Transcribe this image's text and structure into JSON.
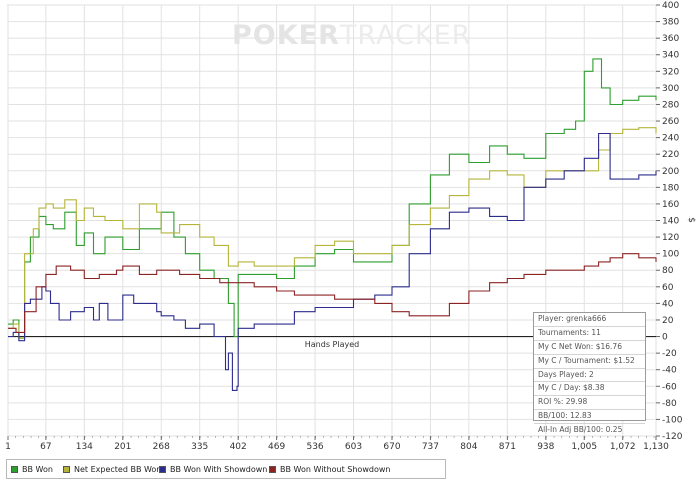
{
  "watermark": {
    "bold": "POKER",
    "light": "TRACKER"
  },
  "chart_data": {
    "type": "line",
    "title": "",
    "xlabel": "Hands Played",
    "ylabel": "$",
    "xlim": [
      1,
      1130
    ],
    "ylim": [
      -120,
      400
    ],
    "x_ticks": [
      "1",
      "67",
      "134",
      "201",
      "268",
      "335",
      "402",
      "469",
      "536",
      "603",
      "670",
      "737",
      "804",
      "871",
      "938",
      "1,005",
      "1,072",
      "1,130"
    ],
    "y_ticks": [
      400,
      380,
      360,
      340,
      320,
      300,
      280,
      260,
      240,
      220,
      200,
      180,
      160,
      140,
      120,
      100,
      80,
      60,
      40,
      20,
      0,
      -20,
      -40,
      -60,
      -80,
      -100,
      -120
    ],
    "grid": true,
    "legend_position": "bottom-left",
    "series": [
      {
        "name": "BB Won",
        "color": "#2e9e2e",
        "x": [
          1,
          10,
          20,
          30,
          40,
          55,
          67,
          80,
          100,
          120,
          134,
          150,
          170,
          201,
          230,
          260,
          268,
          290,
          310,
          335,
          360,
          385,
          395,
          402,
          430,
          469,
          500,
          536,
          570,
          603,
          640,
          670,
          700,
          737,
          770,
          804,
          840,
          871,
          900,
          938,
          970,
          990,
          1005,
          1020,
          1035,
          1050,
          1072,
          1100,
          1130
        ],
        "y": [
          15,
          20,
          -2,
          90,
          120,
          145,
          135,
          130,
          150,
          110,
          125,
          100,
          120,
          105,
          130,
          130,
          150,
          120,
          100,
          80,
          70,
          40,
          0,
          75,
          75,
          70,
          85,
          100,
          105,
          90,
          90,
          110,
          160,
          195,
          220,
          210,
          230,
          220,
          215,
          245,
          250,
          260,
          320,
          335,
          300,
          280,
          285,
          290,
          285
        ]
      },
      {
        "name": "Net Expected BB Won",
        "color": "#b5b53a",
        "x": [
          1,
          10,
          20,
          30,
          45,
          55,
          67,
          80,
          100,
          120,
          134,
          150,
          170,
          201,
          230,
          260,
          268,
          300,
          335,
          360,
          385,
          402,
          430,
          469,
          500,
          536,
          570,
          603,
          640,
          670,
          700,
          737,
          770,
          804,
          840,
          871,
          900,
          938,
          970,
          1005,
          1030,
          1050,
          1072,
          1100,
          1130
        ],
        "y": [
          10,
          15,
          -2,
          100,
          130,
          155,
          160,
          155,
          165,
          140,
          155,
          145,
          140,
          130,
          160,
          150,
          125,
          135,
          120,
          110,
          85,
          90,
          85,
          85,
          95,
          110,
          115,
          100,
          100,
          110,
          135,
          155,
          170,
          190,
          200,
          195,
          180,
          200,
          200,
          200,
          225,
          245,
          250,
          252,
          245
        ]
      },
      {
        "name": "BB Won With Showdown",
        "color": "#2c2c8c",
        "x": [
          1,
          10,
          20,
          30,
          40,
          60,
          67,
          75,
          90,
          110,
          134,
          150,
          160,
          175,
          201,
          220,
          260,
          268,
          290,
          310,
          335,
          360,
          380,
          385,
          392,
          400,
          402,
          430,
          469,
          500,
          536,
          570,
          603,
          640,
          670,
          700,
          737,
          770,
          804,
          840,
          871,
          900,
          938,
          970,
          1005,
          1030,
          1050,
          1072,
          1100,
          1130
        ],
        "y": [
          0,
          5,
          -5,
          40,
          45,
          60,
          55,
          40,
          20,
          30,
          35,
          20,
          40,
          20,
          50,
          40,
          30,
          25,
          20,
          10,
          15,
          0,
          -40,
          -20,
          -65,
          -60,
          10,
          15,
          15,
          30,
          35,
          35,
          45,
          50,
          60,
          100,
          130,
          150,
          155,
          145,
          140,
          180,
          190,
          200,
          215,
          245,
          190,
          190,
          195,
          200
        ]
      },
      {
        "name": "BB Won Without Showdown",
        "color": "#8c2323",
        "x": [
          1,
          15,
          30,
          50,
          67,
          85,
          110,
          134,
          160,
          190,
          201,
          230,
          260,
          268,
          300,
          335,
          370,
          402,
          430,
          469,
          500,
          536,
          570,
          603,
          640,
          670,
          700,
          737,
          770,
          804,
          840,
          871,
          900,
          938,
          970,
          1005,
          1030,
          1050,
          1072,
          1100,
          1130
        ],
        "y": [
          10,
          5,
          30,
          60,
          75,
          85,
          80,
          70,
          75,
          80,
          85,
          75,
          80,
          80,
          75,
          70,
          65,
          65,
          60,
          55,
          50,
          50,
          45,
          45,
          40,
          30,
          25,
          25,
          40,
          55,
          65,
          70,
          75,
          80,
          80,
          85,
          90,
          95,
          100,
          95,
          90
        ]
      }
    ]
  },
  "stats": [
    {
      "label": "Player",
      "value": "grenka666"
    },
    {
      "label": "Tournaments",
      "value": "11"
    },
    {
      "label": "My C Net Won",
      "value": "$16.76"
    },
    {
      "label": "My C / Tournament",
      "value": "$1.52"
    },
    {
      "label": "Days Played",
      "value": "2"
    },
    {
      "label": "My C / Day",
      "value": "$8.38"
    },
    {
      "label": "ROI %",
      "value": "29.98"
    },
    {
      "label": "BB/100",
      "value": "12.83"
    },
    {
      "label": "All-In Adj BB/100",
      "value": "0.25"
    }
  ]
}
